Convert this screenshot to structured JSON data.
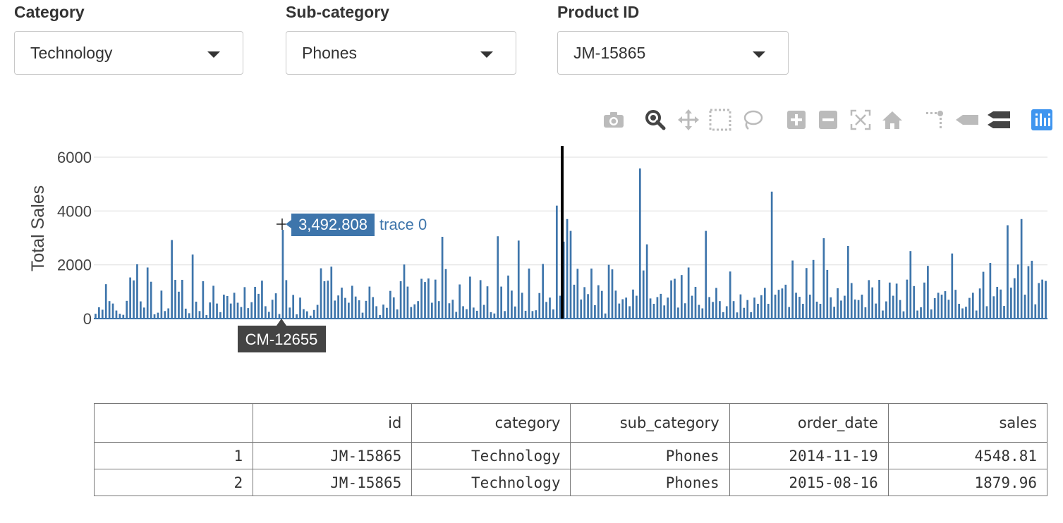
{
  "filters": [
    {
      "label": "Category",
      "value": "Technology"
    },
    {
      "label": "Sub-category",
      "value": "Phones"
    },
    {
      "label": "Product ID",
      "value": "JM-15865"
    }
  ],
  "modebar": {
    "buttons": [
      "camera-icon",
      "zoom-icon",
      "pan-icon",
      "box-select-icon",
      "lasso-select-icon",
      "zoom-in-icon",
      "zoom-out-icon",
      "autoscale-icon",
      "reset-axes-icon",
      "spike-lines-icon",
      "hover-closest-icon",
      "hover-compare-icon",
      "plotly-logo-icon"
    ],
    "active_color": "#444444",
    "inactive_color": "#bbbbbb",
    "logo_color": "#3f95ef"
  },
  "chart_data": {
    "type": "bar",
    "ylabel": "Total Sales",
    "xlabel": "",
    "ylim": [
      0,
      6000
    ],
    "yticks": [
      0,
      2000,
      4000,
      6000
    ],
    "grid": true,
    "bar_color": "#3e75ab",
    "series": [
      {
        "values": [
          180,
          420,
          330,
          1280,
          650,
          560,
          300,
          180,
          140,
          660,
          1530,
          1420,
          2020,
          640,
          410,
          1900,
          1370,
          160,
          220,
          1040,
          280,
          380,
          2920,
          1440,
          1000,
          1440,
          370,
          200,
          2380,
          630,
          280,
          1390,
          130,
          600,
          1220,
          560,
          240,
          890,
          840,
          560,
          960,
          590,
          430,
          1170,
          390,
          610,
          1180,
          920,
          1410,
          460,
          250,
          700,
          940,
          170,
          3300,
          1430,
          410,
          880,
          160,
          780,
          350,
          270,
          110,
          320,
          510,
          1870,
          1390,
          1410,
          1930,
          670,
          860,
          1150,
          770,
          590,
          1220,
          820,
          680,
          220,
          660,
          1190,
          800,
          460,
          130,
          520,
          400,
          1030,
          790,
          340,
          1390,
          2010,
          1190,
          430,
          530,
          650,
          1480,
          1360,
          1490,
          590,
          1450,
          650,
          3040,
          1840,
          570,
          700,
          250,
          1270,
          460,
          350,
          1560,
          410,
          290,
          1430,
          510,
          1200,
          240,
          190,
          3060,
          1190,
          280,
          1600,
          1040,
          450,
          2900,
          960,
          290,
          1860,
          280,
          310,
          950,
          2030,
          620,
          780,
          340,
          4200,
          850,
          2860,
          3700,
          3260,
          1260,
          1850,
          710,
          1170,
          910,
          1860,
          500,
          1240,
          1030,
          190,
          2000,
          1830,
          1040,
          560,
          720,
          780,
          460,
          1080,
          850,
          5580,
          1790,
          2760,
          750,
          550,
          800,
          920,
          490,
          780,
          1420,
          1480,
          410,
          1620,
          570,
          1900,
          850,
          1180,
          510,
          380,
          3260,
          800,
          620,
          1140,
          650,
          240,
          460,
          1750,
          650,
          230,
          900,
          400,
          690,
          240,
          780,
          550,
          870,
          1140,
          550,
          4720,
          890,
          1070,
          1120,
          1260,
          430,
          2160,
          960,
          810,
          550,
          1880,
          890,
          2180,
          630,
          550,
          2990,
          1810,
          790,
          440,
          1130,
          670,
          850,
          2700,
          1320,
          710,
          690,
          890,
          420,
          1430,
          1160,
          560,
          1440,
          300,
          640,
          1340,
          850,
          1300,
          690,
          270,
          1450,
          2510,
          1210,
          300,
          420,
          1340,
          1960,
          340,
          760,
          960,
          890,
          1020,
          700,
          2420,
          1070,
          550,
          380,
          440,
          770,
          960,
          300,
          1120,
          1740,
          460,
          2070,
          830,
          1180,
          1080,
          470,
          3470,
          1150,
          1500,
          2010,
          3700,
          890,
          1950,
          2150,
          530,
          1320,
          1450,
          1400
        ]
      }
    ],
    "hover": {
      "value": "3,492.808",
      "trace": "trace 0",
      "category": "CM-12655"
    },
    "spike_line": true
  },
  "table": {
    "headers": [
      "",
      "id",
      "category",
      "sub_category",
      "order_date",
      "sales"
    ],
    "rows": [
      [
        "1",
        "JM-15865",
        "Technology",
        "Phones",
        "2014-11-19",
        "4548.81"
      ],
      [
        "2",
        "JM-15865",
        "Technology",
        "Phones",
        "2015-08-16",
        "1879.96"
      ]
    ]
  }
}
